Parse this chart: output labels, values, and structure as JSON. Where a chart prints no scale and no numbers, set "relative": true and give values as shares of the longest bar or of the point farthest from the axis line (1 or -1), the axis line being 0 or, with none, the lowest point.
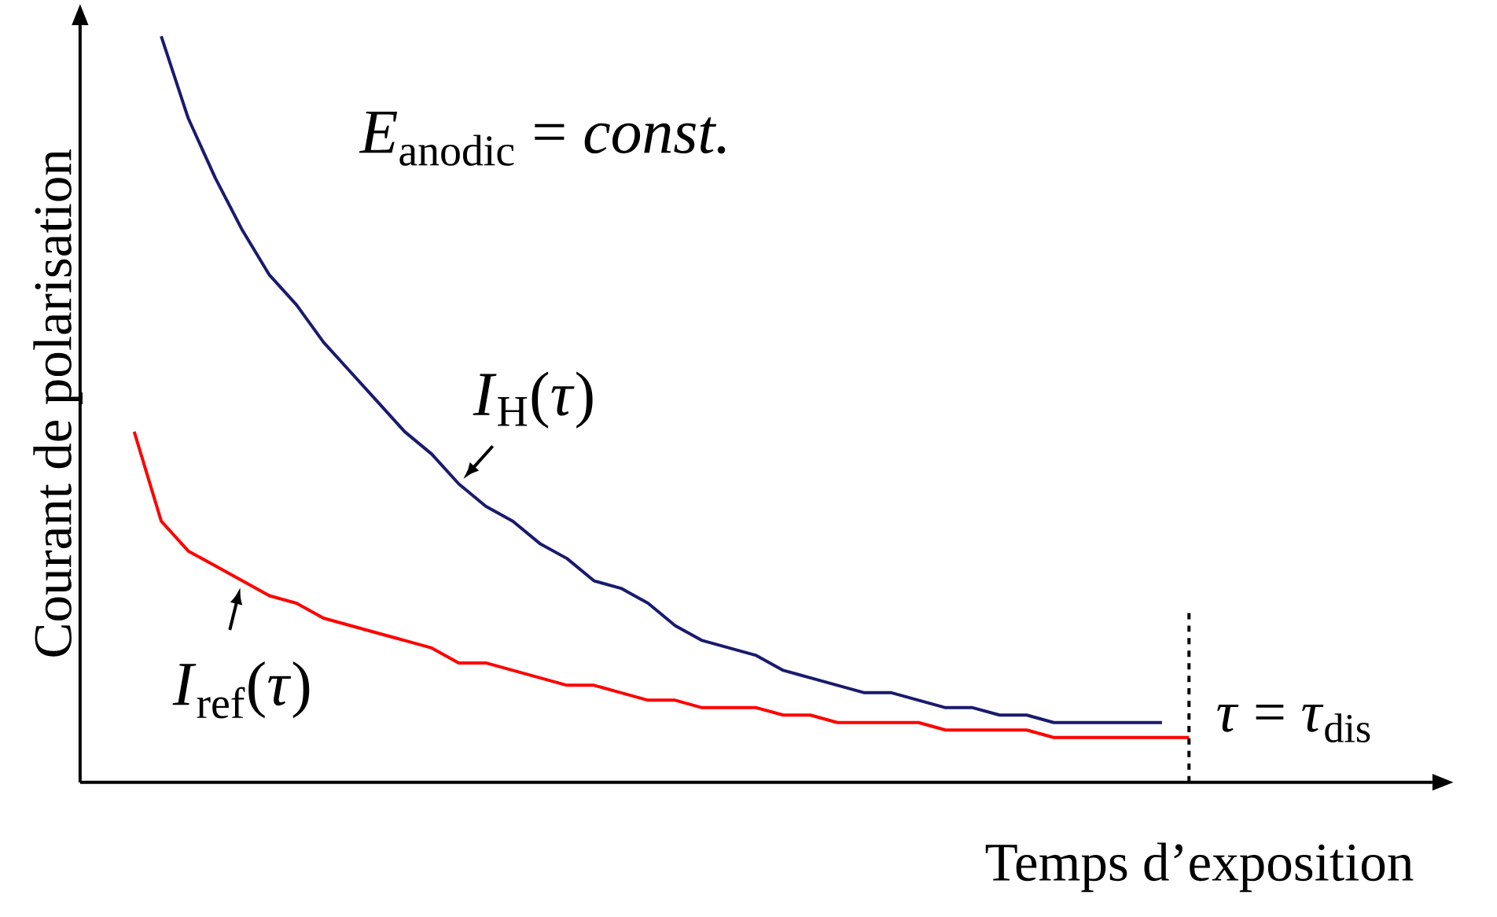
{
  "chart_data": {
    "type": "line",
    "relative": true,
    "xlabel": "Temps d’exposition",
    "ylabel": "Courant de polarisation",
    "annotations": [
      "*E*$_{anodic}$ = *const.*",
      "*τ* = *τ*$_{dis}$"
    ],
    "categories": [
      null,
      null,
      null,
      null,
      null,
      null,
      null,
      null,
      null,
      null,
      null,
      null,
      null,
      null,
      null,
      null,
      null,
      null,
      null,
      null,
      null,
      null,
      null,
      null,
      null,
      null,
      null,
      null,
      null,
      null,
      null,
      null,
      null,
      null,
      null,
      null,
      null,
      null,
      null,
      null
    ],
    "series": [
      {
        "name": "*I*$_{H}$(*τ*)",
        "color": "#1a1a6e",
        "values": [
          null,
          1,
          0.89,
          0.81,
          0.74,
          0.68,
          0.64,
          0.59,
          0.55,
          0.51,
          0.47,
          0.44,
          0.4,
          0.37,
          0.35,
          0.32,
          0.3,
          0.27,
          0.26,
          0.24,
          0.21,
          0.19,
          0.18,
          0.17,
          0.15,
          0.14,
          0.13,
          0.12,
          0.12,
          0.11,
          0.1,
          0.1,
          0.09,
          0.09,
          0.08,
          0.08,
          0.08,
          0.08,
          0.08,
          null
        ]
      },
      {
        "name": "*I*$_{ref}$(*τ*)",
        "color": "#ff0000",
        "values": [
          0.47,
          0.35,
          0.31,
          0.29,
          0.27,
          0.25,
          0.24,
          0.22,
          0.21,
          0.2,
          0.19,
          0.18,
          0.16,
          0.16,
          0.15,
          0.14,
          0.13,
          0.13,
          0.12,
          0.11,
          0.11,
          0.1,
          0.1,
          0.1,
          0.09,
          0.09,
          0.08,
          0.08,
          0.08,
          0.08,
          0.07,
          0.07,
          0.07,
          0.07,
          0.06,
          0.06,
          0.06,
          0.06,
          0.06,
          0.06
        ]
      }
    ],
    "marker": "none",
    "line_style": "solid"
  }
}
